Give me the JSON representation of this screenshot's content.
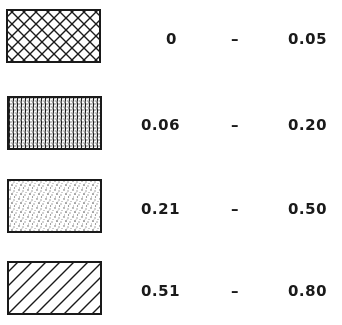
{
  "legend": {
    "items": [
      {
        "pattern": "cross-hatch",
        "from": "0",
        "dash": "–",
        "to": "0.05"
      },
      {
        "pattern": "dense-vertical-stipple",
        "from": "0.06",
        "dash": "–",
        "to": "0.20"
      },
      {
        "pattern": "light-stipple",
        "from": "0.21",
        "dash": "–",
        "to": "0.50"
      },
      {
        "pattern": "diagonal-hatch",
        "from": "0.51",
        "dash": "–",
        "to": "0.80"
      }
    ],
    "colors": {
      "ink": "#1a1a1a",
      "paper": "#ffffff"
    }
  }
}
